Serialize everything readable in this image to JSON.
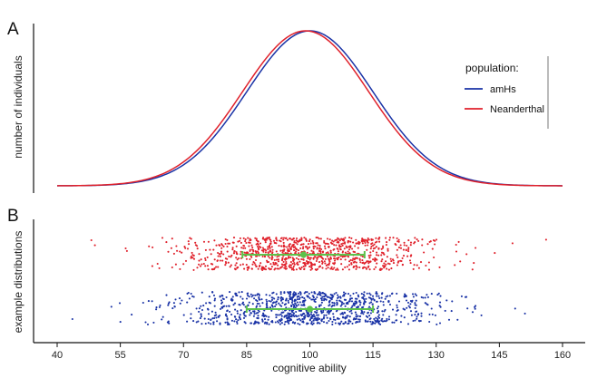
{
  "panel_a": {
    "letter": "A"
  },
  "panel_b": {
    "letter": "B"
  },
  "colors": {
    "amhs": "#1a33a6",
    "neanderthal": "#e0212b",
    "mean_marker": "#5cc24a",
    "axis": "#111111"
  },
  "chart_data": [
    {
      "type": "line",
      "panel": "A",
      "ylabel": "number of individuals",
      "xlabel": "",
      "xlim": [
        40,
        160
      ],
      "y_ticks_shown": false,
      "legend": {
        "title": "population:",
        "placement": "top-right",
        "entries": [
          {
            "label": "amHs",
            "color": "#1a33a6"
          },
          {
            "label": "Neanderthal",
            "color": "#e0212b"
          }
        ]
      },
      "series": [
        {
          "name": "amHs",
          "distribution": "normal",
          "mean": 100,
          "sd": 15,
          "color": "#1a33a6"
        },
        {
          "name": "Neanderthal",
          "distribution": "normal",
          "mean": 99,
          "sd": 15,
          "color": "#e0212b"
        }
      ]
    },
    {
      "type": "scatter",
      "panel": "B",
      "ylabel": "example distributions",
      "xlabel": "cognitive ability",
      "xlim": [
        37,
        163
      ],
      "x_ticks": [
        40,
        55,
        70,
        85,
        100,
        115,
        130,
        145,
        160
      ],
      "series": [
        {
          "name": "Neanderthal",
          "color": "#e0212b",
          "n": 1000,
          "mean": 99,
          "sd": 15,
          "mean_marker": 98.5,
          "error_bar": [
            84,
            113
          ]
        },
        {
          "name": "amHs",
          "color": "#1a33a6",
          "n": 1000,
          "mean": 100,
          "sd": 15,
          "mean_marker": 100,
          "error_bar": [
            85,
            115
          ]
        }
      ]
    }
  ]
}
